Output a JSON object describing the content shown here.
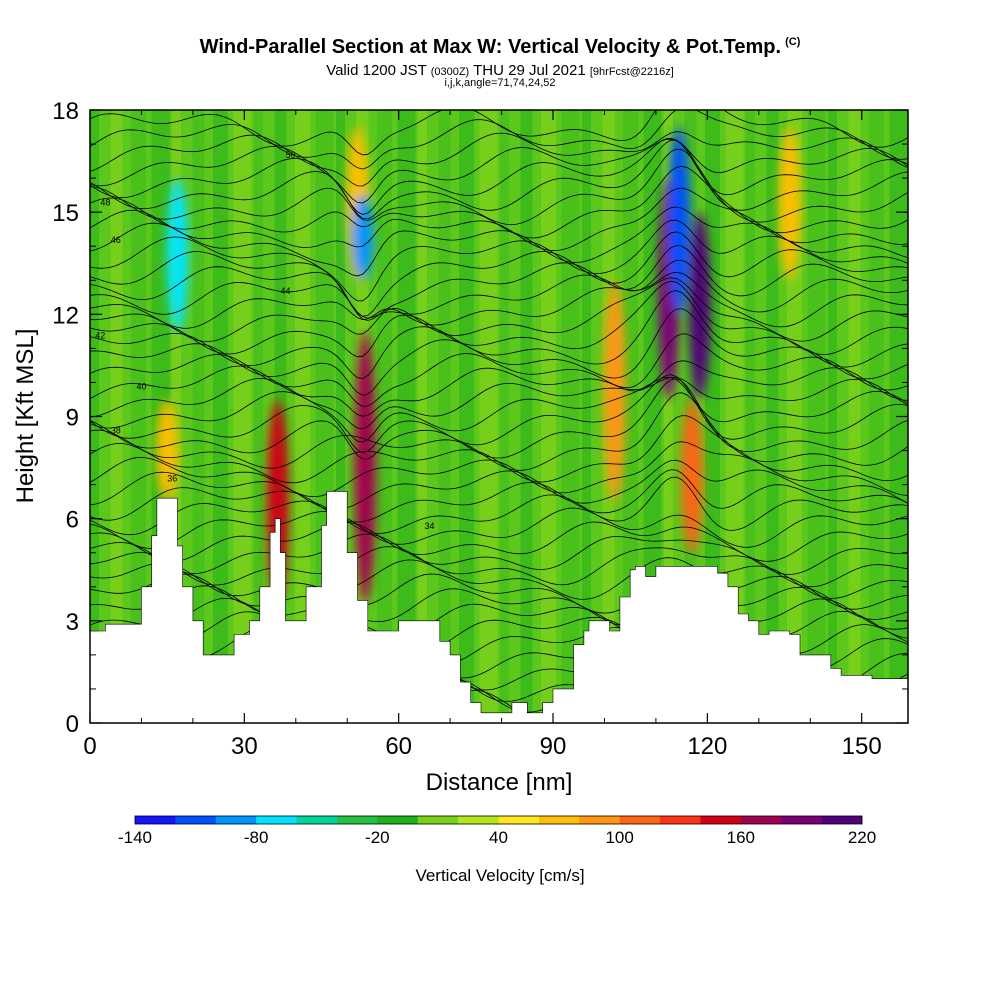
{
  "header": {
    "title_main": "Wind-Parallel Section at Max W: Vertical Velocity & Pot.Temp.",
    "title_mark": "(C)",
    "valid_prefix": "Valid 1200 JST",
    "valid_utc": "(0300Z)",
    "valid_date": "THU 29 Jul 2021",
    "forecast": "[9hrFcst@2216z]",
    "indices": "i,j,k,angle=71,74,24,52"
  },
  "chart_data": {
    "type": "heatmap",
    "xlabel": "Distance [nm]",
    "ylabel": "Height [Kft MSL]",
    "xlim": [
      0,
      159
    ],
    "ylim": [
      0,
      18
    ],
    "x_ticks": [
      "0",
      "30",
      "60",
      "90",
      "120",
      "150"
    ],
    "y_ticks": [
      "0",
      "3",
      "6",
      "9",
      "12",
      "15",
      "18"
    ],
    "colorbar": {
      "label": "Vertical Velocity [cm/s]",
      "tick_labels": [
        "-140",
        "-80",
        "-20",
        "40",
        "100",
        "160",
        "220"
      ],
      "min": -140,
      "max": 220,
      "step": 20,
      "colors": [
        "#1414ff",
        "#0050ff",
        "#0094ff",
        "#00e4ff",
        "#00d49a",
        "#26c040",
        "#22b01a",
        "#78d21a",
        "#b4e61a",
        "#ffe61e",
        "#ffbe00",
        "#ff9614",
        "#ff6414",
        "#ff3214",
        "#d20014",
        "#a00050",
        "#780078",
        "#50007a"
      ]
    },
    "terrain_kft": [
      [
        0,
        2.7
      ],
      [
        3,
        2.9
      ],
      [
        8,
        2.9
      ],
      [
        10,
        4.0
      ],
      [
        12,
        5.5
      ],
      [
        13,
        6.6
      ],
      [
        16,
        6.6
      ],
      [
        17,
        5.2
      ],
      [
        18,
        4.0
      ],
      [
        20,
        3.0
      ],
      [
        22,
        2.0
      ],
      [
        26,
        2.0
      ],
      [
        28,
        2.6
      ],
      [
        31,
        3.0
      ],
      [
        33,
        4.0
      ],
      [
        35,
        5.6
      ],
      [
        36,
        6.0
      ],
      [
        37,
        5.0
      ],
      [
        38,
        3.0
      ],
      [
        40,
        3.0
      ],
      [
        42,
        4.0
      ],
      [
        45,
        5.8
      ],
      [
        46,
        6.8
      ],
      [
        48,
        6.8
      ],
      [
        50,
        5.0
      ],
      [
        52,
        3.6
      ],
      [
        54,
        2.7
      ],
      [
        57,
        2.7
      ],
      [
        60,
        3.0
      ],
      [
        66,
        3.0
      ],
      [
        68,
        2.4
      ],
      [
        70,
        2.0
      ],
      [
        72,
        1.2
      ],
      [
        74,
        0.6
      ],
      [
        76,
        0.3
      ],
      [
        80,
        0.3
      ],
      [
        82,
        0.6
      ],
      [
        85,
        0.3
      ],
      [
        87,
        0.3
      ],
      [
        88,
        0.6
      ],
      [
        90,
        1.0
      ],
      [
        94,
        2.3
      ],
      [
        96,
        2.7
      ],
      [
        97,
        3.0
      ],
      [
        100,
        3.0
      ],
      [
        101,
        2.7
      ],
      [
        103,
        3.7
      ],
      [
        105,
        4.5
      ],
      [
        106,
        4.6
      ],
      [
        108,
        4.3
      ],
      [
        110,
        4.6
      ],
      [
        120,
        4.6
      ],
      [
        122,
        4.4
      ],
      [
        124,
        4.0
      ],
      [
        126,
        3.2
      ],
      [
        128,
        3.0
      ],
      [
        130,
        2.6
      ],
      [
        132,
        2.7
      ],
      [
        136,
        2.6
      ],
      [
        138,
        2.0
      ],
      [
        142,
        2.0
      ],
      [
        144,
        1.6
      ],
      [
        146,
        1.4
      ],
      [
        150,
        1.4
      ],
      [
        152,
        1.3
      ],
      [
        159,
        1.3
      ]
    ],
    "vv_features_cms": [
      {
        "x": 17,
        "ytop": 16,
        "ybot": 11.5,
        "value": -80
      },
      {
        "x": 15,
        "ytop": 9.5,
        "ybot": 6.5,
        "value": 60
      },
      {
        "x": 36.5,
        "ytop": 9.5,
        "ybot": 3.5,
        "value": 140
      },
      {
        "x": 52,
        "ytop": 17.5,
        "ybot": 13,
        "value": 60
      },
      {
        "x": 53.5,
        "ytop": 11.5,
        "ybot": 3.5,
        "value": 160
      },
      {
        "x": 53,
        "ytop": 15.5,
        "ybot": 13,
        "value": -100
      },
      {
        "x": 102,
        "ytop": 13,
        "ybot": 6.5,
        "value": 80
      },
      {
        "x": 112.5,
        "ytop": 16,
        "ybot": 9.5,
        "value": 180
      },
      {
        "x": 114.5,
        "ytop": 17.5,
        "ybot": 12,
        "value": -120
      },
      {
        "x": 118.5,
        "ytop": 15,
        "ybot": 9.5,
        "value": 220
      },
      {
        "x": 117,
        "ytop": 9.5,
        "ybot": 5,
        "value": 100
      },
      {
        "x": 136,
        "ytop": 17.5,
        "ybot": 13,
        "value": 60
      }
    ],
    "theta_contours": [
      {
        "label": "34",
        "height_kft": 5.8,
        "label_x": 66
      },
      {
        "label": "36",
        "height_kft": 7.2,
        "label_x": 16
      },
      {
        "label": "38",
        "height_kft": 8.6,
        "label_x": 5
      },
      {
        "label": "40",
        "height_kft": 9.9,
        "label_x": 10
      },
      {
        "label": "42",
        "height_kft": 11.4,
        "label_x": 2
      },
      {
        "label": "44",
        "height_kft": 12.7,
        "label_x": 38
      },
      {
        "label": "46",
        "height_kft": 14.2,
        "label_x": 5
      },
      {
        "label": "48",
        "height_kft": 15.3,
        "label_x": 3
      },
      {
        "label": "50",
        "height_kft": 16.7,
        "label_x": 39
      }
    ]
  }
}
